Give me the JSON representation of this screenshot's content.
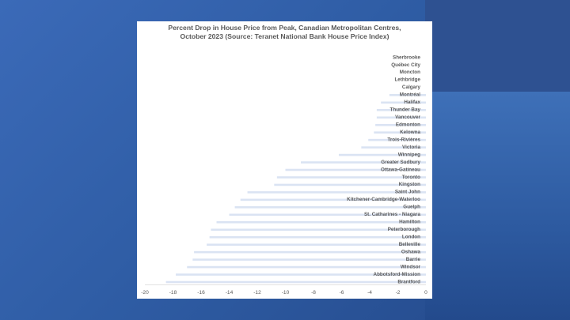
{
  "chart_data": {
    "type": "bar",
    "orientation": "horizontal",
    "title_lines": [
      "Percent Drop in House Price from Peak, Canadian Metropolitan Centres,",
      "October 2023 (Source: Teranet National Bank House Price Index)"
    ],
    "categories": [
      "Sherbrooke",
      "Québec City",
      "Moncton",
      "Lethbridge",
      "Calgary",
      "Montréal",
      "Halifax",
      "Thunder Bay",
      "Vancouver",
      "Edmonton",
      "Kelowna",
      "Trois-Rivières",
      "Victoria",
      "Winnipeg",
      "Greater Sudbury",
      "Ottawa-Gatineau",
      "Toronto",
      "Kingston",
      "Saint John",
      "Kitchener-Cambridge-Waterloo",
      "Guelph",
      "St. Catharines - Niagara",
      "Hamilton",
      "Peterborough",
      "London",
      "Belleville",
      "Oshawa",
      "Barrie",
      "Windsor",
      "Abbotsford-Mission",
      "Brantford"
    ],
    "values": [
      0,
      0,
      0,
      0,
      0,
      -2.6,
      -3.2,
      -3.5,
      -3.5,
      -3.6,
      -3.7,
      -4.1,
      -4.6,
      -6.2,
      -8.9,
      -10.0,
      -10.6,
      -10.8,
      -12.7,
      -13.2,
      -13.6,
      -14.0,
      -14.9,
      -15.3,
      -15.4,
      -15.6,
      -16.5,
      -16.6,
      -17.0,
      -17.8,
      -18.5
    ],
    "xlim": [
      -20,
      0
    ],
    "xticks": [
      -20,
      -18,
      -16,
      -14,
      -12,
      -10,
      -8,
      -6,
      -4,
      -2,
      0
    ],
    "bar_color": "#dae3f3",
    "grid": false,
    "legend": false
  }
}
